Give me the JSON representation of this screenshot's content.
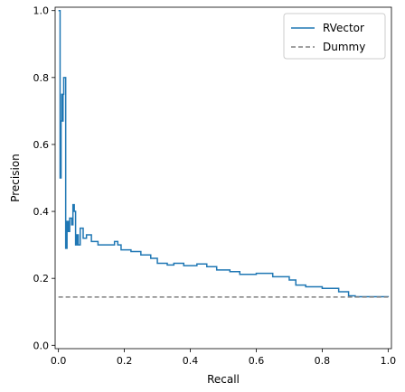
{
  "chart_data": {
    "type": "line",
    "xlabel": "Recall",
    "ylabel": "Precision",
    "xlim": [
      -0.01,
      1.01
    ],
    "ylim": [
      -0.01,
      1.01
    ],
    "xticks": [
      "0.0",
      "0.2",
      "0.4",
      "0.6",
      "0.8",
      "1.0"
    ],
    "yticks": [
      "0.0",
      "0.2",
      "0.4",
      "0.6",
      "0.8",
      "1.0"
    ],
    "legend_position": "top-right",
    "grid": false,
    "series": [
      {
        "name": "RVector",
        "style": "solid",
        "color": "#1f77b4",
        "points": [
          [
            0.0,
            1.0
          ],
          [
            0.005,
            1.0
          ],
          [
            0.005,
            0.5
          ],
          [
            0.008,
            0.67
          ],
          [
            0.01,
            0.75
          ],
          [
            0.012,
            0.67
          ],
          [
            0.014,
            0.75
          ],
          [
            0.016,
            0.8
          ],
          [
            0.02,
            0.8
          ],
          [
            0.022,
            0.29
          ],
          [
            0.026,
            0.37
          ],
          [
            0.03,
            0.34
          ],
          [
            0.034,
            0.38
          ],
          [
            0.04,
            0.36
          ],
          [
            0.044,
            0.42
          ],
          [
            0.048,
            0.4
          ],
          [
            0.052,
            0.3
          ],
          [
            0.056,
            0.33
          ],
          [
            0.06,
            0.3
          ],
          [
            0.066,
            0.35
          ],
          [
            0.075,
            0.32
          ],
          [
            0.085,
            0.33
          ],
          [
            0.1,
            0.31
          ],
          [
            0.12,
            0.3
          ],
          [
            0.15,
            0.3
          ],
          [
            0.17,
            0.31
          ],
          [
            0.18,
            0.3
          ],
          [
            0.19,
            0.285
          ],
          [
            0.22,
            0.28
          ],
          [
            0.25,
            0.27
          ],
          [
            0.28,
            0.26
          ],
          [
            0.3,
            0.245
          ],
          [
            0.33,
            0.24
          ],
          [
            0.35,
            0.245
          ],
          [
            0.38,
            0.238
          ],
          [
            0.42,
            0.243
          ],
          [
            0.45,
            0.235
          ],
          [
            0.48,
            0.225
          ],
          [
            0.52,
            0.22
          ],
          [
            0.55,
            0.212
          ],
          [
            0.6,
            0.215
          ],
          [
            0.65,
            0.205
          ],
          [
            0.7,
            0.195
          ],
          [
            0.72,
            0.18
          ],
          [
            0.75,
            0.175
          ],
          [
            0.8,
            0.17
          ],
          [
            0.85,
            0.16
          ],
          [
            0.88,
            0.148
          ],
          [
            0.9,
            0.145
          ],
          [
            0.95,
            0.145
          ],
          [
            1.0,
            0.144
          ]
        ]
      },
      {
        "name": "Dummy",
        "style": "dashed",
        "color": "#808080",
        "points": [
          [
            0.0,
            0.144
          ],
          [
            1.0,
            0.144
          ]
        ]
      }
    ]
  }
}
